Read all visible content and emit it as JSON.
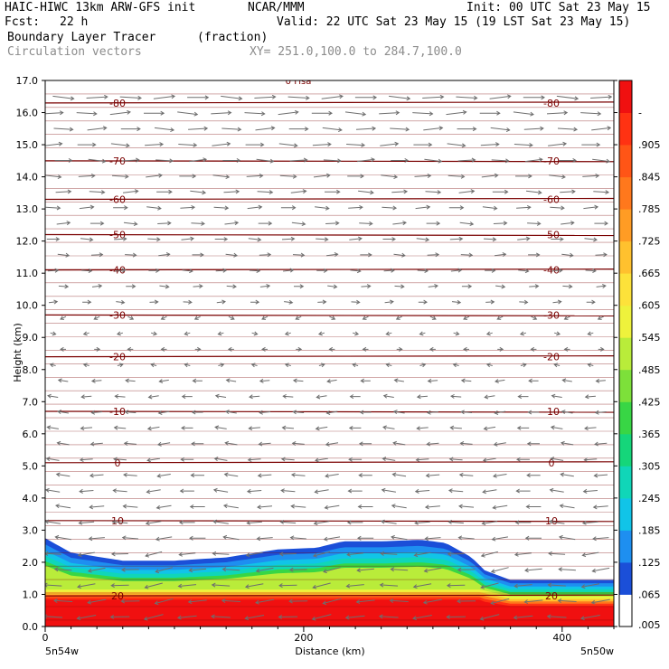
{
  "header": {
    "model": "HAIC-HIWC 13km ARW-GFS init",
    "org": "NCAR/MMM",
    "init": "Init: 00 UTC Sat 23 May 15",
    "fcst_label": "Fcst:",
    "fcst_value": "22 h",
    "valid": "Valid: 22 UTC Sat 23 May 15 (19 LST Sat 23 May 15)",
    "field": "Boundary Layer Tracer",
    "units": "(fraction)",
    "vectors": "Circulation vectors",
    "xy": "XY= 251.0,100.0 to 284.7,100.0"
  },
  "chart_data": {
    "type": "heatmap",
    "xlabel": "Distance (km)",
    "ylabel": "Height (km)",
    "xlim": [
      0,
      440
    ],
    "ylim": [
      0,
      17
    ],
    "x_ticks": [
      0,
      200,
      400
    ],
    "y_ticks": [
      "0.0",
      "1.0",
      "2.0",
      "3.0",
      "4.0",
      "5.0",
      "6.0",
      "7.0",
      "8.0",
      "9.0",
      "10.0",
      "11.0",
      "12.0",
      "13.0",
      "14.0",
      "15.0",
      "16.0",
      "17.0"
    ],
    "x_left_label": "5n54w",
    "x_right_label": "5n50w",
    "colorbar": {
      "labels": [
        ".005",
        ".065",
        ".125",
        ".185",
        ".245",
        ".305",
        ".365",
        ".425",
        ".485",
        ".545",
        ".605",
        ".665",
        ".725",
        ".785",
        ".845",
        ".905",
        "-"
      ],
      "colors": [
        "#ffffff",
        "#1b4fd8",
        "#1e8ff0",
        "#11c4e8",
        "#10d6b8",
        "#15d67a",
        "#38d645",
        "#7de03a",
        "#b9ec3a",
        "#eef23c",
        "#fde23a",
        "#ffc12e",
        "#ff9c24",
        "#ff781c",
        "#ff5516",
        "#ff3212",
        "#f01010"
      ]
    },
    "tracer_top_km": [
      [
        0,
        2.75
      ],
      [
        20,
        2.3
      ],
      [
        60,
        2.05
      ],
      [
        100,
        2.05
      ],
      [
        140,
        2.15
      ],
      [
        180,
        2.4
      ],
      [
        210,
        2.45
      ],
      [
        230,
        2.65
      ],
      [
        260,
        2.65
      ],
      [
        290,
        2.7
      ],
      [
        310,
        2.6
      ],
      [
        330,
        2.15
      ],
      [
        340,
        1.75
      ],
      [
        360,
        1.45
      ],
      [
        440,
        1.45
      ]
    ],
    "contour_lines": [
      {
        "label": "-80",
        "height_km": 16.3
      },
      {
        "label": "-70",
        "height_km": 14.5
      },
      {
        "label": "-60",
        "height_km": 13.3
      },
      {
        "label": "-50",
        "height_km": 12.2
      },
      {
        "label": "-40",
        "height_km": 11.1
      },
      {
        "label": "-30",
        "height_km": 9.7
      },
      {
        "label": "-20",
        "height_km": 8.4
      },
      {
        "label": "-10",
        "height_km": 6.7
      },
      {
        "label": "0",
        "height_km": 5.1
      },
      {
        "label": "10",
        "height_km": 3.3
      },
      {
        "label": "20",
        "height_km": 0.95
      }
    ],
    "contour_label_text": "0 Fisa",
    "vectors": {
      "upper_direction": "east",
      "lower_direction": "west",
      "reversal_height_km": 10
    }
  }
}
